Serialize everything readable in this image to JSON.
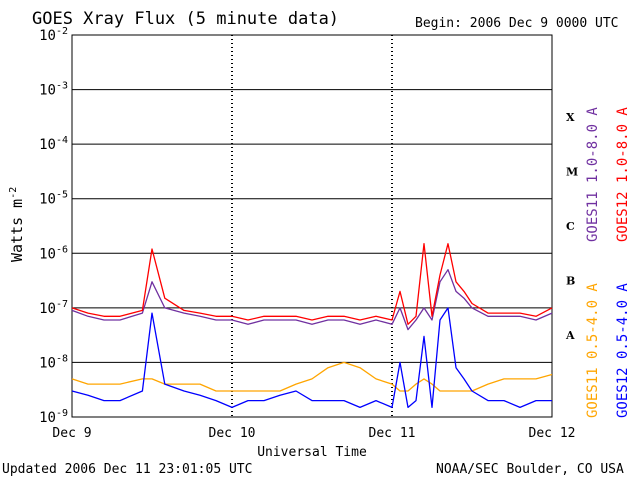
{
  "chart_data": {
    "type": "line",
    "title": "GOES Xray Flux (5 minute data)",
    "begin_label": "Begin:  2006 Dec 9 0000 UTC",
    "xlabel": "Universal Time",
    "ylabel": "Watts m",
    "ylabel_sup": "-2",
    "y_scale": "log",
    "ylim": [
      1e-09,
      0.01
    ],
    "xlim_days": [
      0,
      3
    ],
    "x_ticks": [
      {
        "value": 0,
        "label": "Dec 9"
      },
      {
        "value": 1,
        "label": "Dec 10"
      },
      {
        "value": 2,
        "label": "Dec 11"
      },
      {
        "value": 3,
        "label": "Dec 12"
      }
    ],
    "y_ticks": [
      {
        "exp": -2,
        "base": "10",
        "sup": "-2"
      },
      {
        "exp": -3,
        "base": "10",
        "sup": "-3"
      },
      {
        "exp": -4,
        "base": "10",
        "sup": "-4"
      },
      {
        "exp": -5,
        "base": "10",
        "sup": "-5"
      },
      {
        "exp": -6,
        "base": "10",
        "sup": "-6"
      },
      {
        "exp": -7,
        "base": "10",
        "sup": "-7"
      },
      {
        "exp": -8,
        "base": "10",
        "sup": "-8"
      },
      {
        "exp": -9,
        "base": "10",
        "sup": "-9"
      }
    ],
    "flare_classes": [
      {
        "label": "X",
        "exp": -3.5
      },
      {
        "label": "M",
        "exp": -4.5
      },
      {
        "label": "C",
        "exp": -5.5
      },
      {
        "label": "B",
        "exp": -6.5
      },
      {
        "label": "A",
        "exp": -7.5
      }
    ],
    "grid": true,
    "legend_position": "right",
    "series": [
      {
        "name": "GOES11 1.0-8.0 A",
        "color": "#7030a0",
        "x": [
          0.0,
          0.1,
          0.2,
          0.3,
          0.44,
          0.5,
          0.58,
          0.7,
          0.8,
          0.9,
          1.0,
          1.1,
          1.2,
          1.3,
          1.4,
          1.5,
          1.6,
          1.7,
          1.8,
          1.9,
          2.0,
          2.05,
          2.1,
          2.15,
          2.2,
          2.25,
          2.3,
          2.35,
          2.4,
          2.45,
          2.5,
          2.6,
          2.7,
          2.8,
          2.9,
          3.0
        ],
        "y": [
          9e-08,
          7e-08,
          6e-08,
          6e-08,
          8e-08,
          3e-07,
          1e-07,
          8e-08,
          7e-08,
          6e-08,
          6e-08,
          5e-08,
          6e-08,
          6e-08,
          6e-08,
          5e-08,
          6e-08,
          6e-08,
          5e-08,
          6e-08,
          5e-08,
          1e-07,
          4e-08,
          6e-08,
          1e-07,
          6e-08,
          3e-07,
          5e-07,
          2e-07,
          1.5e-07,
          1e-07,
          7e-08,
          7e-08,
          7e-08,
          6e-08,
          8e-08
        ]
      },
      {
        "name": "GOES12 1.0-8.0 A",
        "color": "#ff0000",
        "x": [
          0.0,
          0.1,
          0.2,
          0.3,
          0.44,
          0.5,
          0.58,
          0.7,
          0.8,
          0.9,
          1.0,
          1.1,
          1.2,
          1.3,
          1.4,
          1.5,
          1.6,
          1.7,
          1.8,
          1.9,
          2.0,
          2.05,
          2.1,
          2.15,
          2.2,
          2.25,
          2.3,
          2.35,
          2.4,
          2.45,
          2.5,
          2.6,
          2.7,
          2.8,
          2.9,
          3.0
        ],
        "y": [
          1e-07,
          8e-08,
          7e-08,
          7e-08,
          9e-08,
          1.2e-06,
          1.5e-07,
          9e-08,
          8e-08,
          7e-08,
          7e-08,
          6e-08,
          7e-08,
          7e-08,
          7e-08,
          6e-08,
          7e-08,
          7e-08,
          6e-08,
          7e-08,
          6e-08,
          2e-07,
          5e-08,
          7e-08,
          1.5e-06,
          7e-08,
          4e-07,
          1.5e-06,
          3e-07,
          2e-07,
          1.2e-07,
          8e-08,
          8e-08,
          8e-08,
          7e-08,
          1e-07
        ]
      },
      {
        "name": "GOES11 0.5-4.0 A",
        "color": "#ffa500",
        "x": [
          0.0,
          0.1,
          0.2,
          0.3,
          0.44,
          0.5,
          0.58,
          0.7,
          0.8,
          0.9,
          1.0,
          1.1,
          1.2,
          1.3,
          1.4,
          1.5,
          1.6,
          1.7,
          1.8,
          1.9,
          2.0,
          2.05,
          2.1,
          2.15,
          2.2,
          2.25,
          2.3,
          2.35,
          2.4,
          2.45,
          2.5,
          2.6,
          2.7,
          2.8,
          2.9,
          3.0
        ],
        "y": [
          5e-09,
          4e-09,
          4e-09,
          4e-09,
          5e-09,
          5e-09,
          4e-09,
          4e-09,
          4e-09,
          3e-09,
          3e-09,
          3e-09,
          3e-09,
          3e-09,
          4e-09,
          5e-09,
          8e-09,
          1e-08,
          8e-09,
          5e-09,
          4e-09,
          3e-09,
          3e-09,
          4e-09,
          5e-09,
          4e-09,
          3e-09,
          3e-09,
          3e-09,
          3e-09,
          3e-09,
          4e-09,
          5e-09,
          5e-09,
          5e-09,
          6e-09
        ]
      },
      {
        "name": "GOES12 0.5-4.0 A",
        "color": "#0000ff",
        "x": [
          0.0,
          0.1,
          0.2,
          0.3,
          0.44,
          0.5,
          0.58,
          0.7,
          0.8,
          0.9,
          1.0,
          1.1,
          1.2,
          1.3,
          1.4,
          1.5,
          1.6,
          1.7,
          1.8,
          1.9,
          2.0,
          2.05,
          2.1,
          2.15,
          2.2,
          2.25,
          2.3,
          2.35,
          2.4,
          2.45,
          2.5,
          2.6,
          2.7,
          2.8,
          2.9,
          3.0
        ],
        "y": [
          3e-09,
          2.5e-09,
          2e-09,
          2e-09,
          3e-09,
          8e-08,
          4e-09,
          3e-09,
          2.5e-09,
          2e-09,
          1.5e-09,
          2e-09,
          2e-09,
          2.5e-09,
          3e-09,
          2e-09,
          2e-09,
          2e-09,
          1.5e-09,
          2e-09,
          1.5e-09,
          1e-08,
          1.5e-09,
          2e-09,
          3e-08,
          1.5e-09,
          6e-08,
          1e-07,
          8e-09,
          5e-09,
          3e-09,
          2e-09,
          2e-09,
          1.5e-09,
          2e-09,
          2e-09
        ]
      }
    ],
    "updated_label": "Updated 2006 Dec 11 23:01:05 UTC",
    "source_label": "NOAA/SEC Boulder, CO USA"
  }
}
